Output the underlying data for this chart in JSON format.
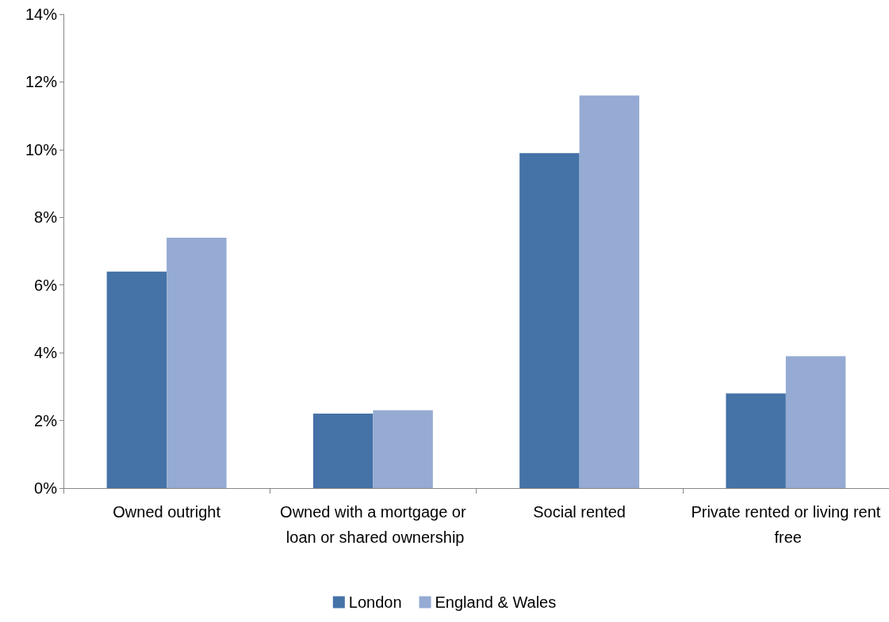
{
  "chart_data": {
    "type": "bar",
    "categories": [
      "Owned outright",
      "Owned with a mortgage or loan or shared ownership",
      "Social rented",
      "Private rented or living rent free"
    ],
    "series": [
      {
        "name": "London",
        "color": "#4572a7",
        "values": [
          6.4,
          2.2,
          9.9,
          2.8
        ]
      },
      {
        "name": "England & Wales",
        "color": "#95abd3",
        "values": [
          7.4,
          2.3,
          11.6,
          3.9
        ]
      }
    ],
    "ylim": [
      0,
      14
    ],
    "yticks": [
      {
        "value": 0,
        "label": "0%"
      },
      {
        "value": 2,
        "label": "2%"
      },
      {
        "value": 4,
        "label": "4%"
      },
      {
        "value": 6,
        "label": "6%"
      },
      {
        "value": 8,
        "label": "8%"
      },
      {
        "value": 10,
        "label": "10%"
      },
      {
        "value": 12,
        "label": "12%"
      },
      {
        "value": 14,
        "label": "14%"
      }
    ],
    "grid": false,
    "legend": "bottom"
  }
}
